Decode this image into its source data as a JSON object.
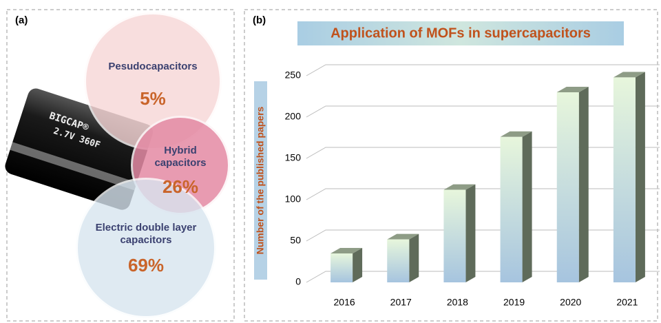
{
  "chart_data": [
    {
      "type": "bubble",
      "panel_label": "(a)",
      "capacitor_text": [
        "BIGCAP®",
        "2.7V 360F"
      ],
      "categories": [
        "Pesudocapacitors",
        "Hybrid capacitors",
        "Electric double layer capacitors"
      ],
      "values": [
        5,
        26,
        69
      ],
      "value_labels": [
        "5%",
        "26%",
        "69%"
      ],
      "colors": [
        "#f7d6d6",
        "#e48aa4",
        "#d8e5f0"
      ]
    },
    {
      "type": "bar",
      "panel_label": "(b)",
      "title": "Application of MOFs in supercapacitors",
      "ylabel": "Number of the published papers",
      "categories": [
        "2016",
        "2017",
        "2018",
        "2019",
        "2020",
        "2021"
      ],
      "values": [
        35,
        52,
        112,
        176,
        230,
        248
      ],
      "ylim": [
        0,
        265
      ],
      "yticks": [
        0,
        50,
        100,
        150,
        200,
        250
      ],
      "grid": true,
      "color": "#a9c4dc"
    }
  ]
}
